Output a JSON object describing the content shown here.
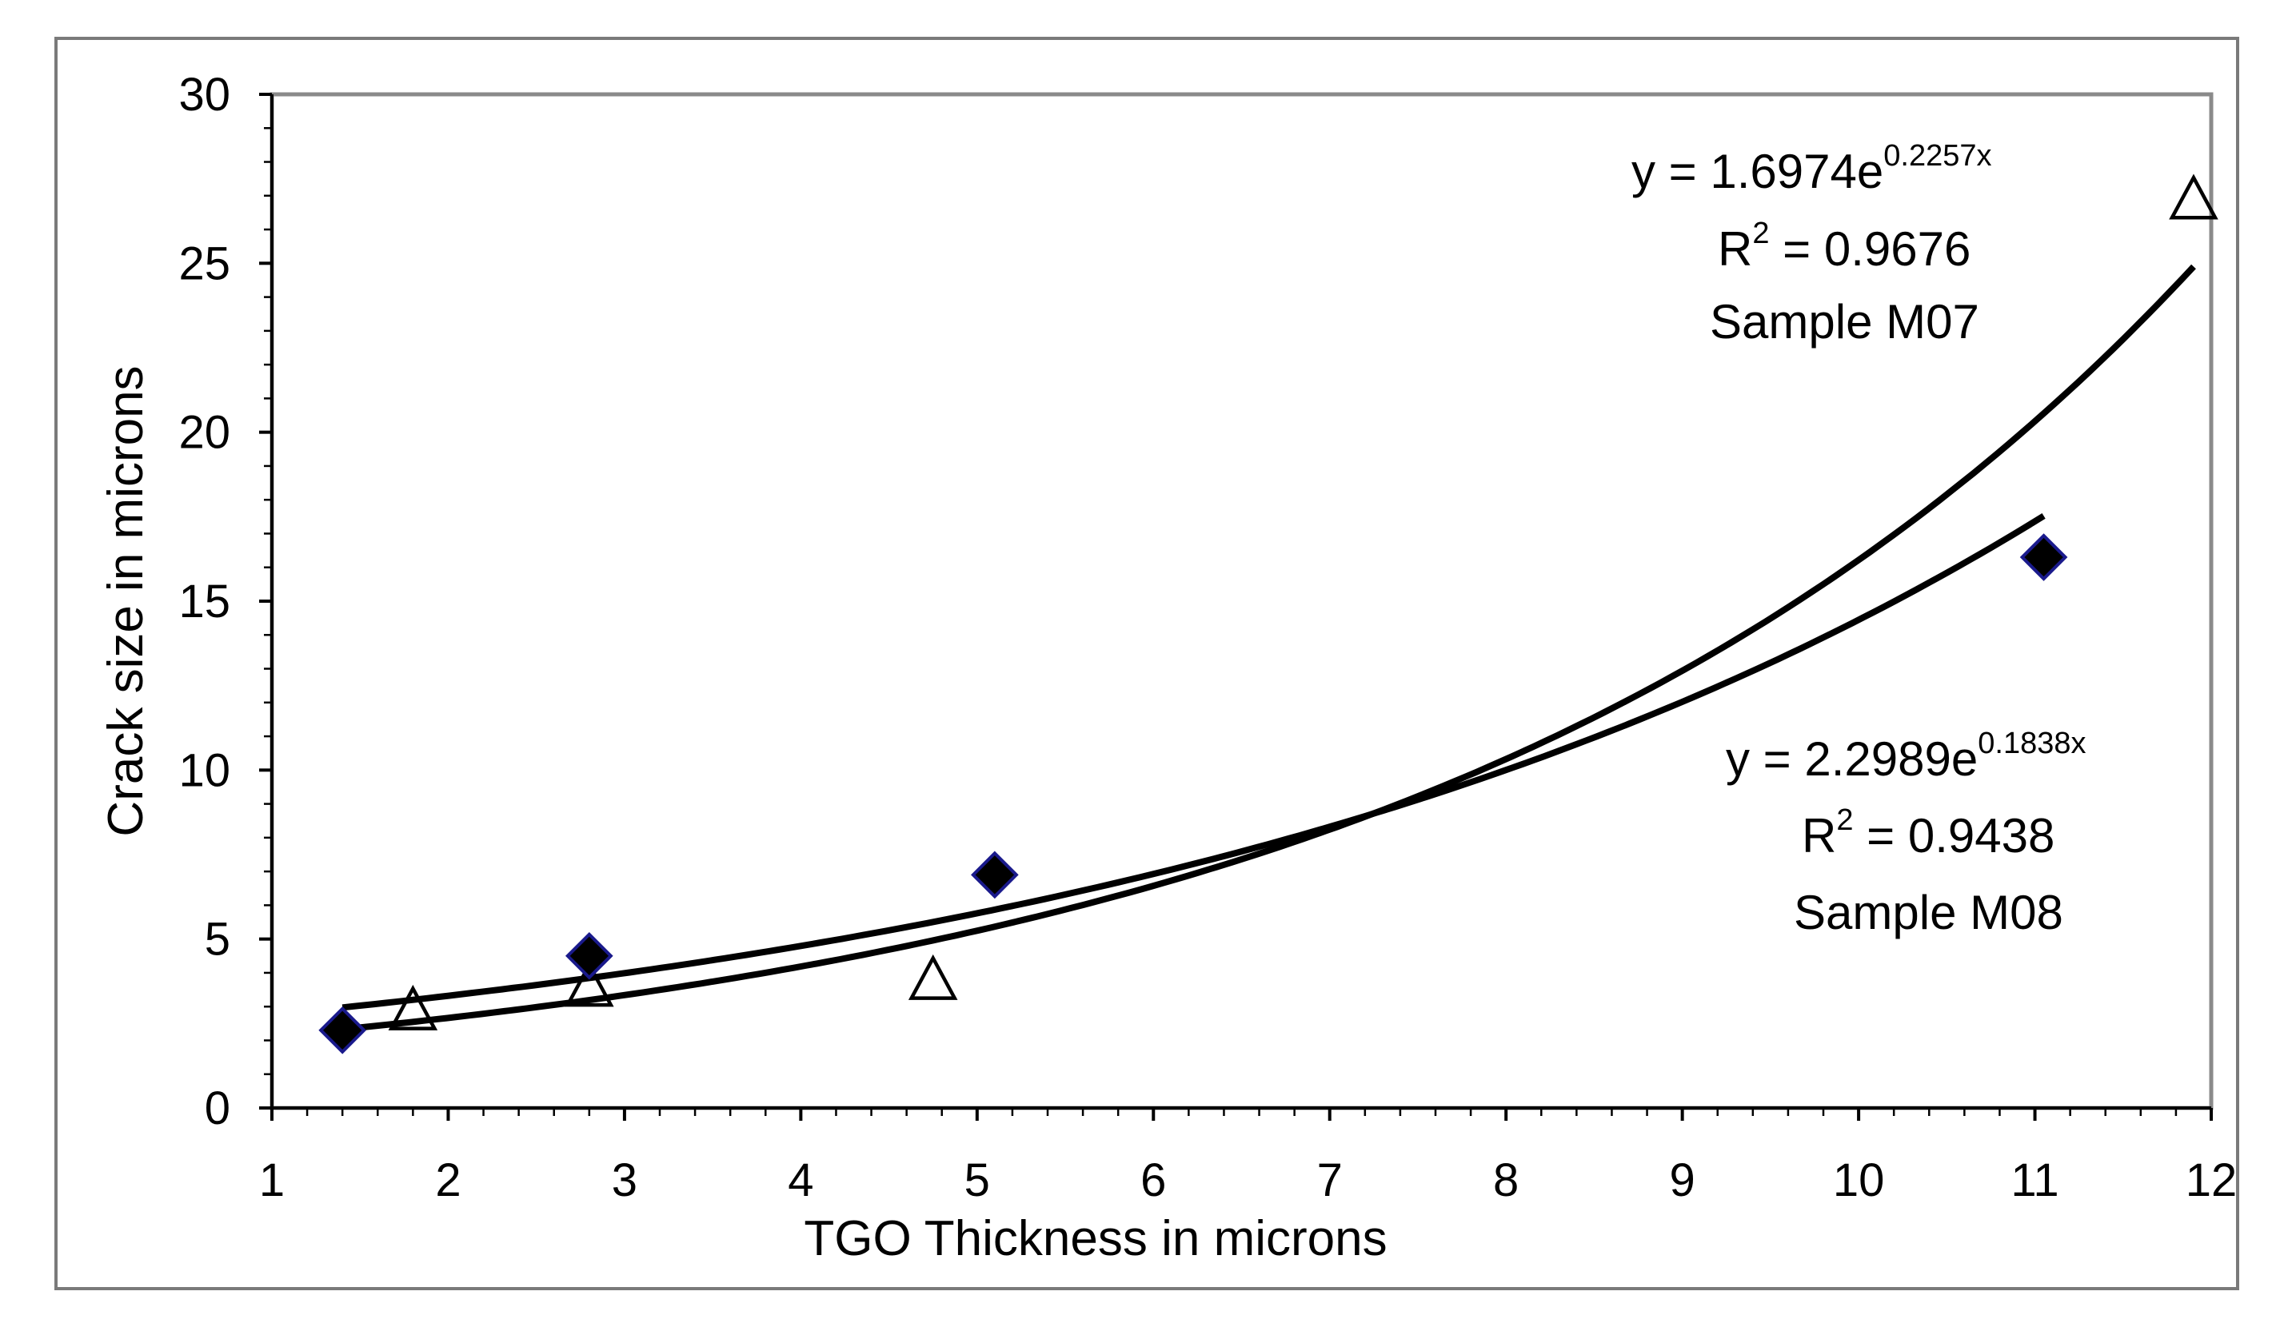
{
  "chart_data": {
    "type": "scatter",
    "title": "",
    "xlabel": "TGO Thickness in microns",
    "ylabel": "Crack size in microns",
    "xlim": [
      1,
      12
    ],
    "ylim": [
      0,
      30
    ],
    "xticks": [
      1,
      2,
      3,
      4,
      5,
      6,
      7,
      8,
      9,
      10,
      11,
      12
    ],
    "yticks": [
      0,
      5,
      10,
      15,
      20,
      25,
      30
    ],
    "grid": false,
    "series": [
      {
        "name": "Sample M07",
        "marker": "open-triangle",
        "color": "#000000",
        "x": [
          1.8,
          2.8,
          4.75,
          11.9
        ],
        "y": [
          2.8,
          3.5,
          3.7,
          26.8
        ],
        "trendline": {
          "type": "exponential",
          "a": 1.6974,
          "b": 0.2257,
          "x_from": 1.4,
          "x_to": 11.9
        },
        "annotation": {
          "eq_prefix": "y = 1.6974e",
          "eq_exp": "0.2257x",
          "r2_prefix": "R",
          "r2_sup": "2",
          "r2_value": " = 0.9676",
          "label": "Sample M07"
        }
      },
      {
        "name": "Sample M08",
        "marker": "filled-diamond",
        "color": "#000000",
        "edge_color": "#1a1a8c",
        "x": [
          1.4,
          2.8,
          5.1,
          11.05
        ],
        "y": [
          2.3,
          4.5,
          6.9,
          16.3
        ],
        "trendline": {
          "type": "exponential",
          "a": 2.2989,
          "b": 0.1838,
          "x_from": 1.4,
          "x_to": 11.05
        },
        "annotation": {
          "eq_prefix": "y = 2.2989e",
          "eq_exp": "0.1838x",
          "r2_prefix": "R",
          "r2_sup": "2",
          "r2_value": " = 0.9438",
          "label": "Sample M08"
        }
      }
    ]
  }
}
